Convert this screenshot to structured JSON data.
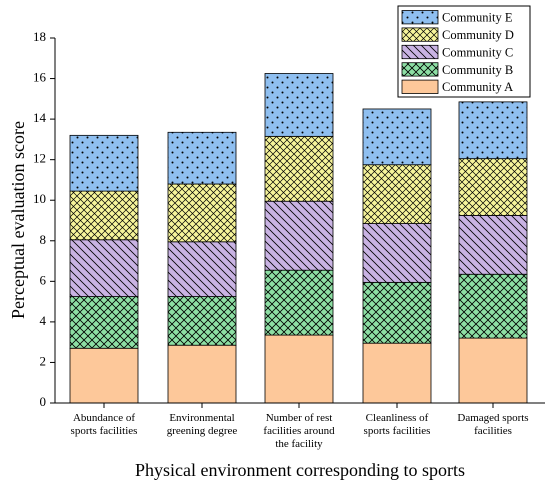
{
  "chart_data": {
    "type": "bar",
    "stacked": true,
    "categories": [
      [
        "Abundance of",
        "sports facilities"
      ],
      [
        "Environmental",
        "greening degree"
      ],
      [
        "Number of rest",
        "facilities around",
        "the facility"
      ],
      [
        "Cleanliness of",
        "sports facilities"
      ],
      [
        "Damaged sports",
        "facilities"
      ]
    ],
    "series": [
      {
        "name": "Community A",
        "values": [
          2.7,
          2.85,
          3.35,
          2.95,
          3.2
        ],
        "color": "#FDC89A",
        "pattern": "none"
      },
      {
        "name": "Community B",
        "values": [
          2.55,
          2.4,
          3.2,
          3.0,
          3.15
        ],
        "color": "#8DDFA4",
        "pattern": "cross-hatch"
      },
      {
        "name": "Community C",
        "values": [
          2.8,
          2.7,
          3.4,
          2.9,
          2.9
        ],
        "color": "#C9B3E3",
        "pattern": "diagonal"
      },
      {
        "name": "Community D",
        "values": [
          2.4,
          2.85,
          3.2,
          2.9,
          2.8
        ],
        "color": "#F7F59B",
        "pattern": "crosshatch-dense"
      },
      {
        "name": "Community E",
        "values": [
          2.75,
          2.55,
          3.1,
          2.75,
          2.8
        ],
        "color": "#8FBFF0",
        "pattern": "dots"
      }
    ],
    "xlabel": "Physical environment corresponding to sports",
    "ylabel": "Perceptual evaluation score",
    "ylim": [
      0,
      18
    ],
    "yticks": [
      0,
      2,
      4,
      6,
      8,
      10,
      12,
      14,
      16,
      18
    ],
    "grid": false,
    "legend": "top-right",
    "legend_order": [
      "Community E",
      "Community D",
      "Community C",
      "Community B",
      "Community A"
    ]
  }
}
